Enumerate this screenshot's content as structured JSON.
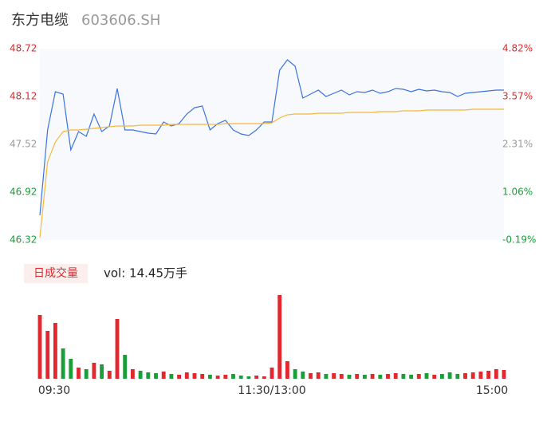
{
  "header": {
    "name": "东方电缆",
    "code": "603606.SH"
  },
  "chart_data": {
    "type": "intraday",
    "xticks": [
      {
        "value": 0,
        "label": "09:30"
      },
      {
        "value": 30,
        "label": "11:30/13:00"
      },
      {
        "value": 60,
        "label": "15:00"
      }
    ],
    "xlim": [
      0,
      60
    ],
    "ylim": [
      46.32,
      48.72
    ],
    "yticks": [
      46.32,
      46.92,
      47.52,
      48.12,
      48.72
    ],
    "ytick_colors": [
      "#1a9e3a",
      "#1a9e3a",
      "#999999",
      "#e0282e",
      "#e0282e"
    ],
    "y2lim": [
      -0.19,
      4.82
    ],
    "y2ticks": [
      {
        "value": -0.19,
        "label": "-0.19%"
      },
      {
        "value": 1.06,
        "label": "1.06%"
      },
      {
        "value": 2.31,
        "label": "2.31%"
      },
      {
        "value": 3.57,
        "label": "3.57%"
      },
      {
        "value": 4.82,
        "label": "4.82%"
      }
    ],
    "series": [
      {
        "name": "price",
        "color": "#3b73e0",
        "values": [
          46.63,
          47.7,
          48.18,
          48.15,
          47.45,
          47.68,
          47.62,
          47.9,
          47.68,
          47.75,
          48.22,
          47.7,
          47.7,
          47.68,
          47.66,
          47.65,
          47.8,
          47.75,
          47.78,
          47.9,
          47.98,
          48.0,
          47.7,
          47.78,
          47.82,
          47.7,
          47.65,
          47.63,
          47.7,
          47.8,
          47.8,
          48.45,
          48.58,
          48.5,
          48.1,
          48.15,
          48.2,
          48.12,
          48.16,
          48.2,
          48.14,
          48.18,
          48.17,
          48.2,
          48.16,
          48.18,
          48.22,
          48.21,
          48.18,
          48.21,
          48.19,
          48.2,
          48.18,
          48.17,
          48.12,
          48.16,
          48.17,
          48.18,
          48.19,
          48.2,
          48.2
        ]
      },
      {
        "name": "average",
        "color": "#f5b93a",
        "values": [
          46.35,
          47.3,
          47.55,
          47.68,
          47.7,
          47.7,
          47.71,
          47.72,
          47.73,
          47.74,
          47.75,
          47.75,
          47.75,
          47.76,
          47.76,
          47.76,
          47.76,
          47.77,
          47.77,
          47.77,
          47.77,
          47.77,
          47.77,
          47.77,
          47.78,
          47.78,
          47.78,
          47.78,
          47.78,
          47.78,
          47.79,
          47.85,
          47.89,
          47.9,
          47.9,
          47.9,
          47.91,
          47.91,
          47.91,
          47.91,
          47.92,
          47.92,
          47.92,
          47.92,
          47.93,
          47.93,
          47.93,
          47.94,
          47.94,
          47.94,
          47.95,
          47.95,
          47.95,
          47.95,
          47.95,
          47.95,
          47.96,
          47.96,
          47.96,
          47.96,
          47.96
        ]
      }
    ],
    "volume": {
      "label": "日成交量",
      "total": "vol: 14.45万手",
      "up_color": "#e0282e",
      "down_color": "#1a9e3a",
      "ylim": [
        0,
        110
      ],
      "values": [
        80,
        60,
        70,
        38,
        25,
        14,
        12,
        20,
        18,
        10,
        75,
        30,
        12,
        10,
        8,
        7,
        9,
        6,
        5,
        8,
        7,
        6,
        5,
        4,
        5,
        6,
        4,
        3,
        4,
        3,
        14,
        105,
        22,
        12,
        9,
        7,
        8,
        6,
        7,
        6,
        5,
        6,
        5,
        6,
        5,
        6,
        7,
        6,
        5,
        6,
        7,
        5,
        6,
        8,
        6,
        7,
        8,
        9,
        10,
        12,
        11
      ]
    }
  }
}
